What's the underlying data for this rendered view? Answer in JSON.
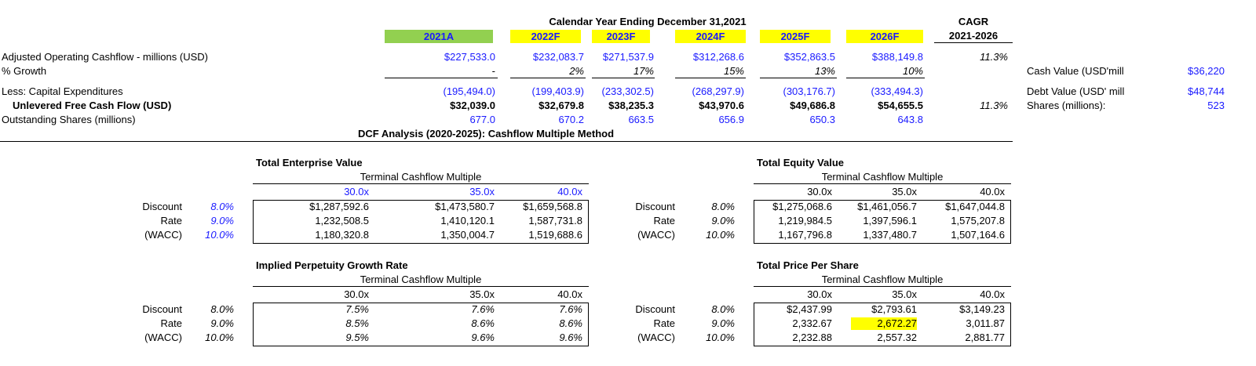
{
  "header": {
    "title": "Calendar Year Ending December 31,2021",
    "cagr_label": "CAGR",
    "cagr_range": "2021-2026",
    "years": [
      "2021A",
      "2022F",
      "2023F",
      "2024F",
      "2025F",
      "2026F"
    ]
  },
  "rows": {
    "op_cf": {
      "label": "Adjusted Operating Cashflow - millions (USD)",
      "values": [
        "$227,533.0",
        "$232,083.7",
        "$271,537.9",
        "$312,268.6",
        "$352,863.5",
        "$388,149.8"
      ],
      "cagr": "11.3%"
    },
    "growth": {
      "label": "% Growth",
      "values": [
        "-",
        "2%",
        "17%",
        "15%",
        "13%",
        "10%"
      ]
    },
    "capex": {
      "label": "Less: Capital Expenditures",
      "values": [
        "(195,494.0)",
        "(199,403.9)",
        "(233,302.5)",
        "(268,297.9)",
        "(303,176.7)",
        "(333,494.3)"
      ]
    },
    "ufcf": {
      "label": "Unlevered Free Cash Flow (USD)",
      "values": [
        "$32,039.0",
        "$32,679.8",
        "$38,235.3",
        "$43,970.6",
        "$49,686.8",
        "$54,655.5"
      ],
      "cagr": "11.3%"
    },
    "shares": {
      "label": "Outstanding Shares (millions)",
      "values": [
        "677.0",
        "670.2",
        "663.5",
        "656.9",
        "650.3",
        "643.8"
      ]
    }
  },
  "side": [
    {
      "label": "Cash Value (USD'mill",
      "value": "$36,220"
    },
    {
      "label": "Debt Value (USD' mill",
      "value": "$48,744"
    },
    {
      "label": "Shares (millions):",
      "value": "523"
    }
  ],
  "dcf_title": "DCF Analysis (2020-2025):  Cashflow Multiple Method",
  "subtitle": "Terminal Cashflow Multiple",
  "multiples": [
    "30.0x",
    "35.0x",
    "40.0x"
  ],
  "rate_labels": [
    "Discount",
    "Rate",
    "(WACC)"
  ],
  "rates": [
    "8.0%",
    "9.0%",
    "10.0%"
  ],
  "tev": {
    "title": "Total Enterprise Value",
    "rows": [
      [
        "$1,287,592.6",
        "$1,473,580.7",
        "$1,659,568.8"
      ],
      [
        "1,232,508.5",
        "1,410,120.1",
        "1,587,731.8"
      ],
      [
        "1,180,320.8",
        "1,350,004.7",
        "1,519,688.6"
      ]
    ]
  },
  "teq": {
    "title": "Total Equity Value",
    "rows": [
      [
        "$1,275,068.6",
        "$1,461,056.7",
        "$1,647,044.8"
      ],
      [
        "1,219,984.5",
        "1,397,596.1",
        "1,575,207.8"
      ],
      [
        "1,167,796.8",
        "1,337,480.7",
        "1,507,164.6"
      ]
    ]
  },
  "ipg": {
    "title": "Implied Perpetuity Growth Rate",
    "rows": [
      [
        "7.5%",
        "7.6%",
        "7.6%"
      ],
      [
        "8.5%",
        "8.6%",
        "8.6%"
      ],
      [
        "9.5%",
        "9.6%",
        "9.6%"
      ]
    ]
  },
  "tps": {
    "title": "Total Price Per Share",
    "rows": [
      [
        "$2,437.99",
        "$2,793.61",
        "$3,149.23"
      ],
      [
        "2,332.67",
        "2,672.27",
        "3,011.87"
      ],
      [
        "2,232.88",
        "2,557.32",
        "2,881.77"
      ]
    ],
    "highlight": "2,672.27"
  }
}
